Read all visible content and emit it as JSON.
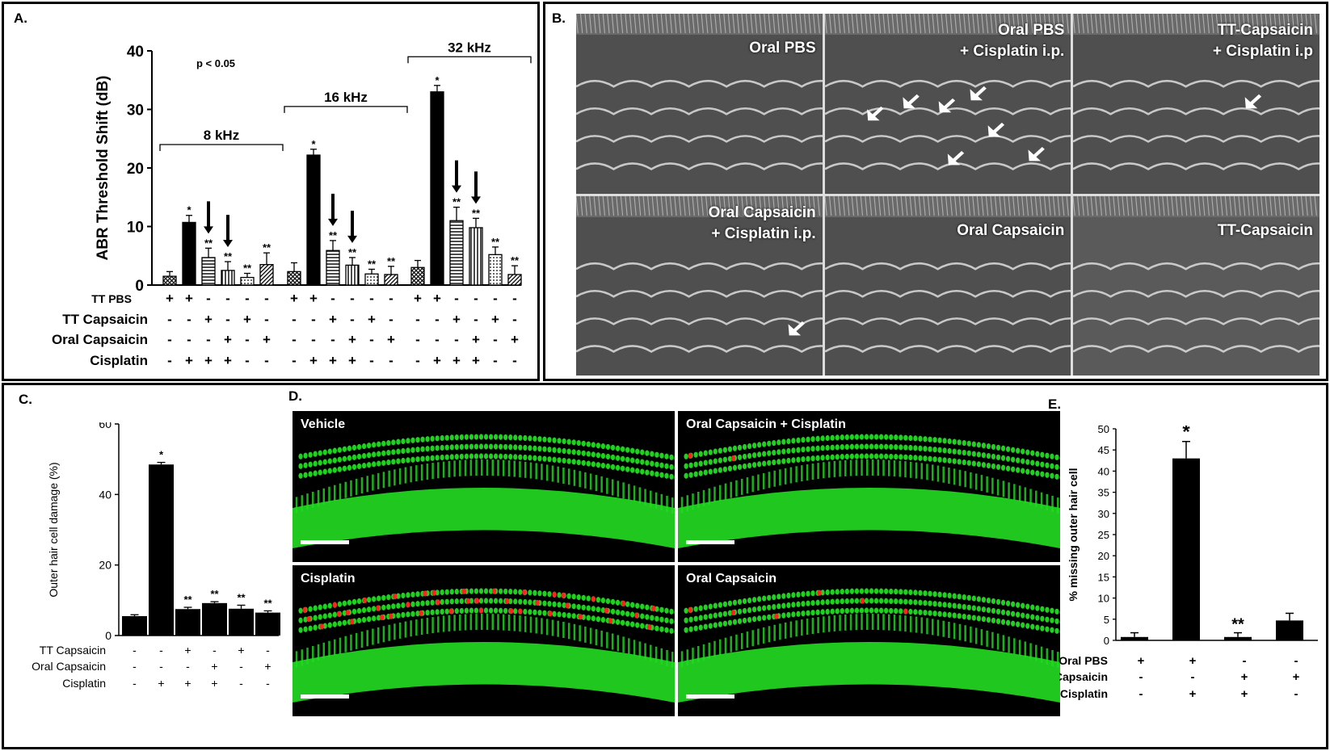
{
  "panels": {
    "a_label": "A.",
    "b_label": "B.",
    "c_label": "C.",
    "d_label": "D.",
    "e_label": "E."
  },
  "sem_images": [
    {
      "label": "Oral PBS",
      "arrows": 0
    },
    {
      "label": "Oral PBS\n+ Cisplatin i.p.",
      "arrows": 7
    },
    {
      "label": "TT-Capsaicin\n+ Cisplatin  i.p",
      "arrows": 1
    },
    {
      "label": "Oral Capsaicin\n+ Cisplatin i.p.",
      "arrows": 1
    },
    {
      "label": "Oral Capsaicin",
      "arrows": 0
    },
    {
      "label": "TT-Capsaicin",
      "arrows": 0
    }
  ],
  "confocal_images": [
    {
      "label": "Vehicle",
      "red_cells": 0
    },
    {
      "label": "Oral Capsaicin + Cisplatin",
      "red_cells": 2
    },
    {
      "label": "Cisplatin",
      "red_cells": 40
    },
    {
      "label": "Oral Capsaicin",
      "red_cells": 6
    }
  ],
  "colors": {
    "bar": "#000000",
    "cells": "#22dd22",
    "damaged": "#ff2222"
  },
  "chart_data": [
    {
      "type": "bar",
      "panel": "A",
      "title": "",
      "ylabel": "ABR Threshold Shift (dB)",
      "ylim": [
        0,
        40
      ],
      "yticks": [
        0,
        10,
        20,
        30,
        40
      ],
      "annotation": "p < 0.05",
      "groups": [
        {
          "label": "8 kHz",
          "values": [
            1.5,
            10.7,
            4.7,
            2.5,
            1.3,
            3.5
          ],
          "errors": [
            0.8,
            1.2,
            1.6,
            1.5,
            0.7,
            2.0
          ],
          "sig": [
            "",
            "*",
            "**",
            "**",
            "**",
            "**"
          ],
          "down_arrows": [
            2,
            3
          ]
        },
        {
          "label": "16 kHz",
          "values": [
            2.3,
            22.2,
            5.9,
            3.4,
            1.9,
            1.8
          ],
          "errors": [
            1.5,
            1.0,
            1.7,
            1.3,
            0.8,
            1.4
          ],
          "sig": [
            "",
            "*",
            "**",
            "**",
            "**",
            "**"
          ],
          "down_arrows": [
            2,
            3
          ]
        },
        {
          "label": "32 kHz",
          "values": [
            3.0,
            33.0,
            11.0,
            9.8,
            5.2,
            1.8
          ],
          "errors": [
            1.2,
            1.1,
            2.3,
            1.6,
            1.3,
            1.5
          ],
          "sig": [
            "",
            "*",
            "**",
            "**",
            "**",
            "**"
          ],
          "down_arrows": [
            2,
            3
          ]
        }
      ],
      "bar_patterns": [
        "cross",
        "solid",
        "horizontal",
        "vertical",
        "dots",
        "diagonal"
      ],
      "conditions": [
        {
          "label": "TT PBS",
          "signs": [
            "+",
            "+",
            "-",
            "-",
            "-",
            "-"
          ]
        },
        {
          "label": "TT Capsaicin",
          "signs": [
            "-",
            "-",
            "+",
            "-",
            "+",
            "-"
          ]
        },
        {
          "label": "Oral Capsaicin",
          "signs": [
            "-",
            "-",
            "-",
            "+",
            "-",
            "+"
          ]
        },
        {
          "label": "Cisplatin",
          "signs": [
            "-",
            "+",
            "+",
            "+",
            "-",
            "-"
          ]
        }
      ]
    },
    {
      "type": "bar",
      "panel": "C",
      "title": "",
      "ylabel": "Outer hair cell  damage (%)",
      "ylim": [
        0,
        60
      ],
      "yticks": [
        0,
        20,
        40,
        60
      ],
      "values": [
        5.5,
        48.5,
        7.5,
        9.2,
        7.6,
        6.5
      ],
      "errors": [
        0.4,
        0.6,
        0.5,
        0.4,
        1.0,
        0.5
      ],
      "sig": [
        "",
        "*",
        "**",
        "**",
        "**",
        "**"
      ],
      "conditions": [
        {
          "label": "TT Capsaicin",
          "signs": [
            "-",
            "-",
            "+",
            "-",
            "+",
            "-"
          ]
        },
        {
          "label": "Oral Capsaicin",
          "signs": [
            "-",
            "-",
            "-",
            "+",
            "-",
            "+"
          ]
        },
        {
          "label": "Cisplatin",
          "signs": [
            "-",
            "+",
            "+",
            "+",
            "-",
            "-"
          ]
        }
      ]
    },
    {
      "type": "bar",
      "panel": "E",
      "title": "",
      "ylabel": "% missing outer hair cell",
      "ylim": [
        0,
        50
      ],
      "yticks": [
        0,
        5,
        10,
        15,
        20,
        25,
        30,
        35,
        40,
        45,
        50
      ],
      "values": [
        0.8,
        43.0,
        0.8,
        4.7
      ],
      "errors": [
        1.0,
        4.0,
        1.0,
        1.7
      ],
      "sig": [
        "",
        "*",
        "**",
        ""
      ],
      "conditions": [
        {
          "label": "Oral PBS",
          "signs": [
            "+",
            "+",
            "-",
            "-"
          ]
        },
        {
          "label": "Oral Capsaicin",
          "signs": [
            "-",
            "-",
            "+",
            "+"
          ]
        },
        {
          "label": "Cisplatin",
          "signs": [
            "-",
            "+",
            "+",
            "-"
          ]
        }
      ]
    }
  ]
}
